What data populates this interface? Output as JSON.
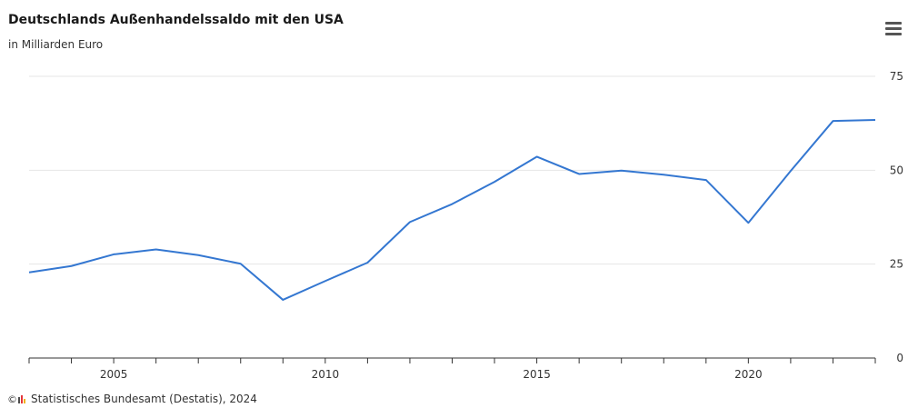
{
  "header": {
    "title": "Deutschlands Außenhandelssaldo mit den USA",
    "subtitle": "in Milliarden Euro",
    "menu_icon": "hamburger-menu-icon"
  },
  "source": {
    "copyright_symbol": "©",
    "text": "Statistisches Bundesamt (Destatis), 2024",
    "logo_icon": "destatis-logo-icon"
  },
  "colors": {
    "line": "#3477d1",
    "grid": "#e6e6e6",
    "axis": "#333333",
    "logo": [
      "#4d4d4d",
      "#e5343a",
      "#f2b21b"
    ]
  },
  "chart_data": {
    "type": "line",
    "title": "Deutschlands Außenhandelssaldo mit den USA",
    "subtitle": "in Milliarden Euro",
    "xlabel": "",
    "ylabel": "",
    "xlim": [
      2003,
      2023
    ],
    "ylim": [
      0,
      75
    ],
    "x_ticks": [
      2005,
      2010,
      2015,
      2020
    ],
    "y_ticks": [
      0,
      25,
      50,
      75
    ],
    "grid": true,
    "legend": "none",
    "series": [
      {
        "x": [
          2003,
          2004,
          2005,
          2006,
          2007,
          2008,
          2009,
          2010,
          2011,
          2012,
          2013,
          2014,
          2015,
          2016,
          2017,
          2018,
          2019,
          2020,
          2021,
          2022,
          2023
        ],
        "values": [
          22.8,
          24.5,
          27.6,
          28.9,
          27.4,
          25.1,
          15.5,
          20.5,
          25.4,
          36.2,
          41.0,
          46.9,
          53.6,
          49.0,
          49.9,
          48.8,
          47.4,
          36.0,
          49.8,
          63.1,
          63.4
        ]
      }
    ]
  }
}
